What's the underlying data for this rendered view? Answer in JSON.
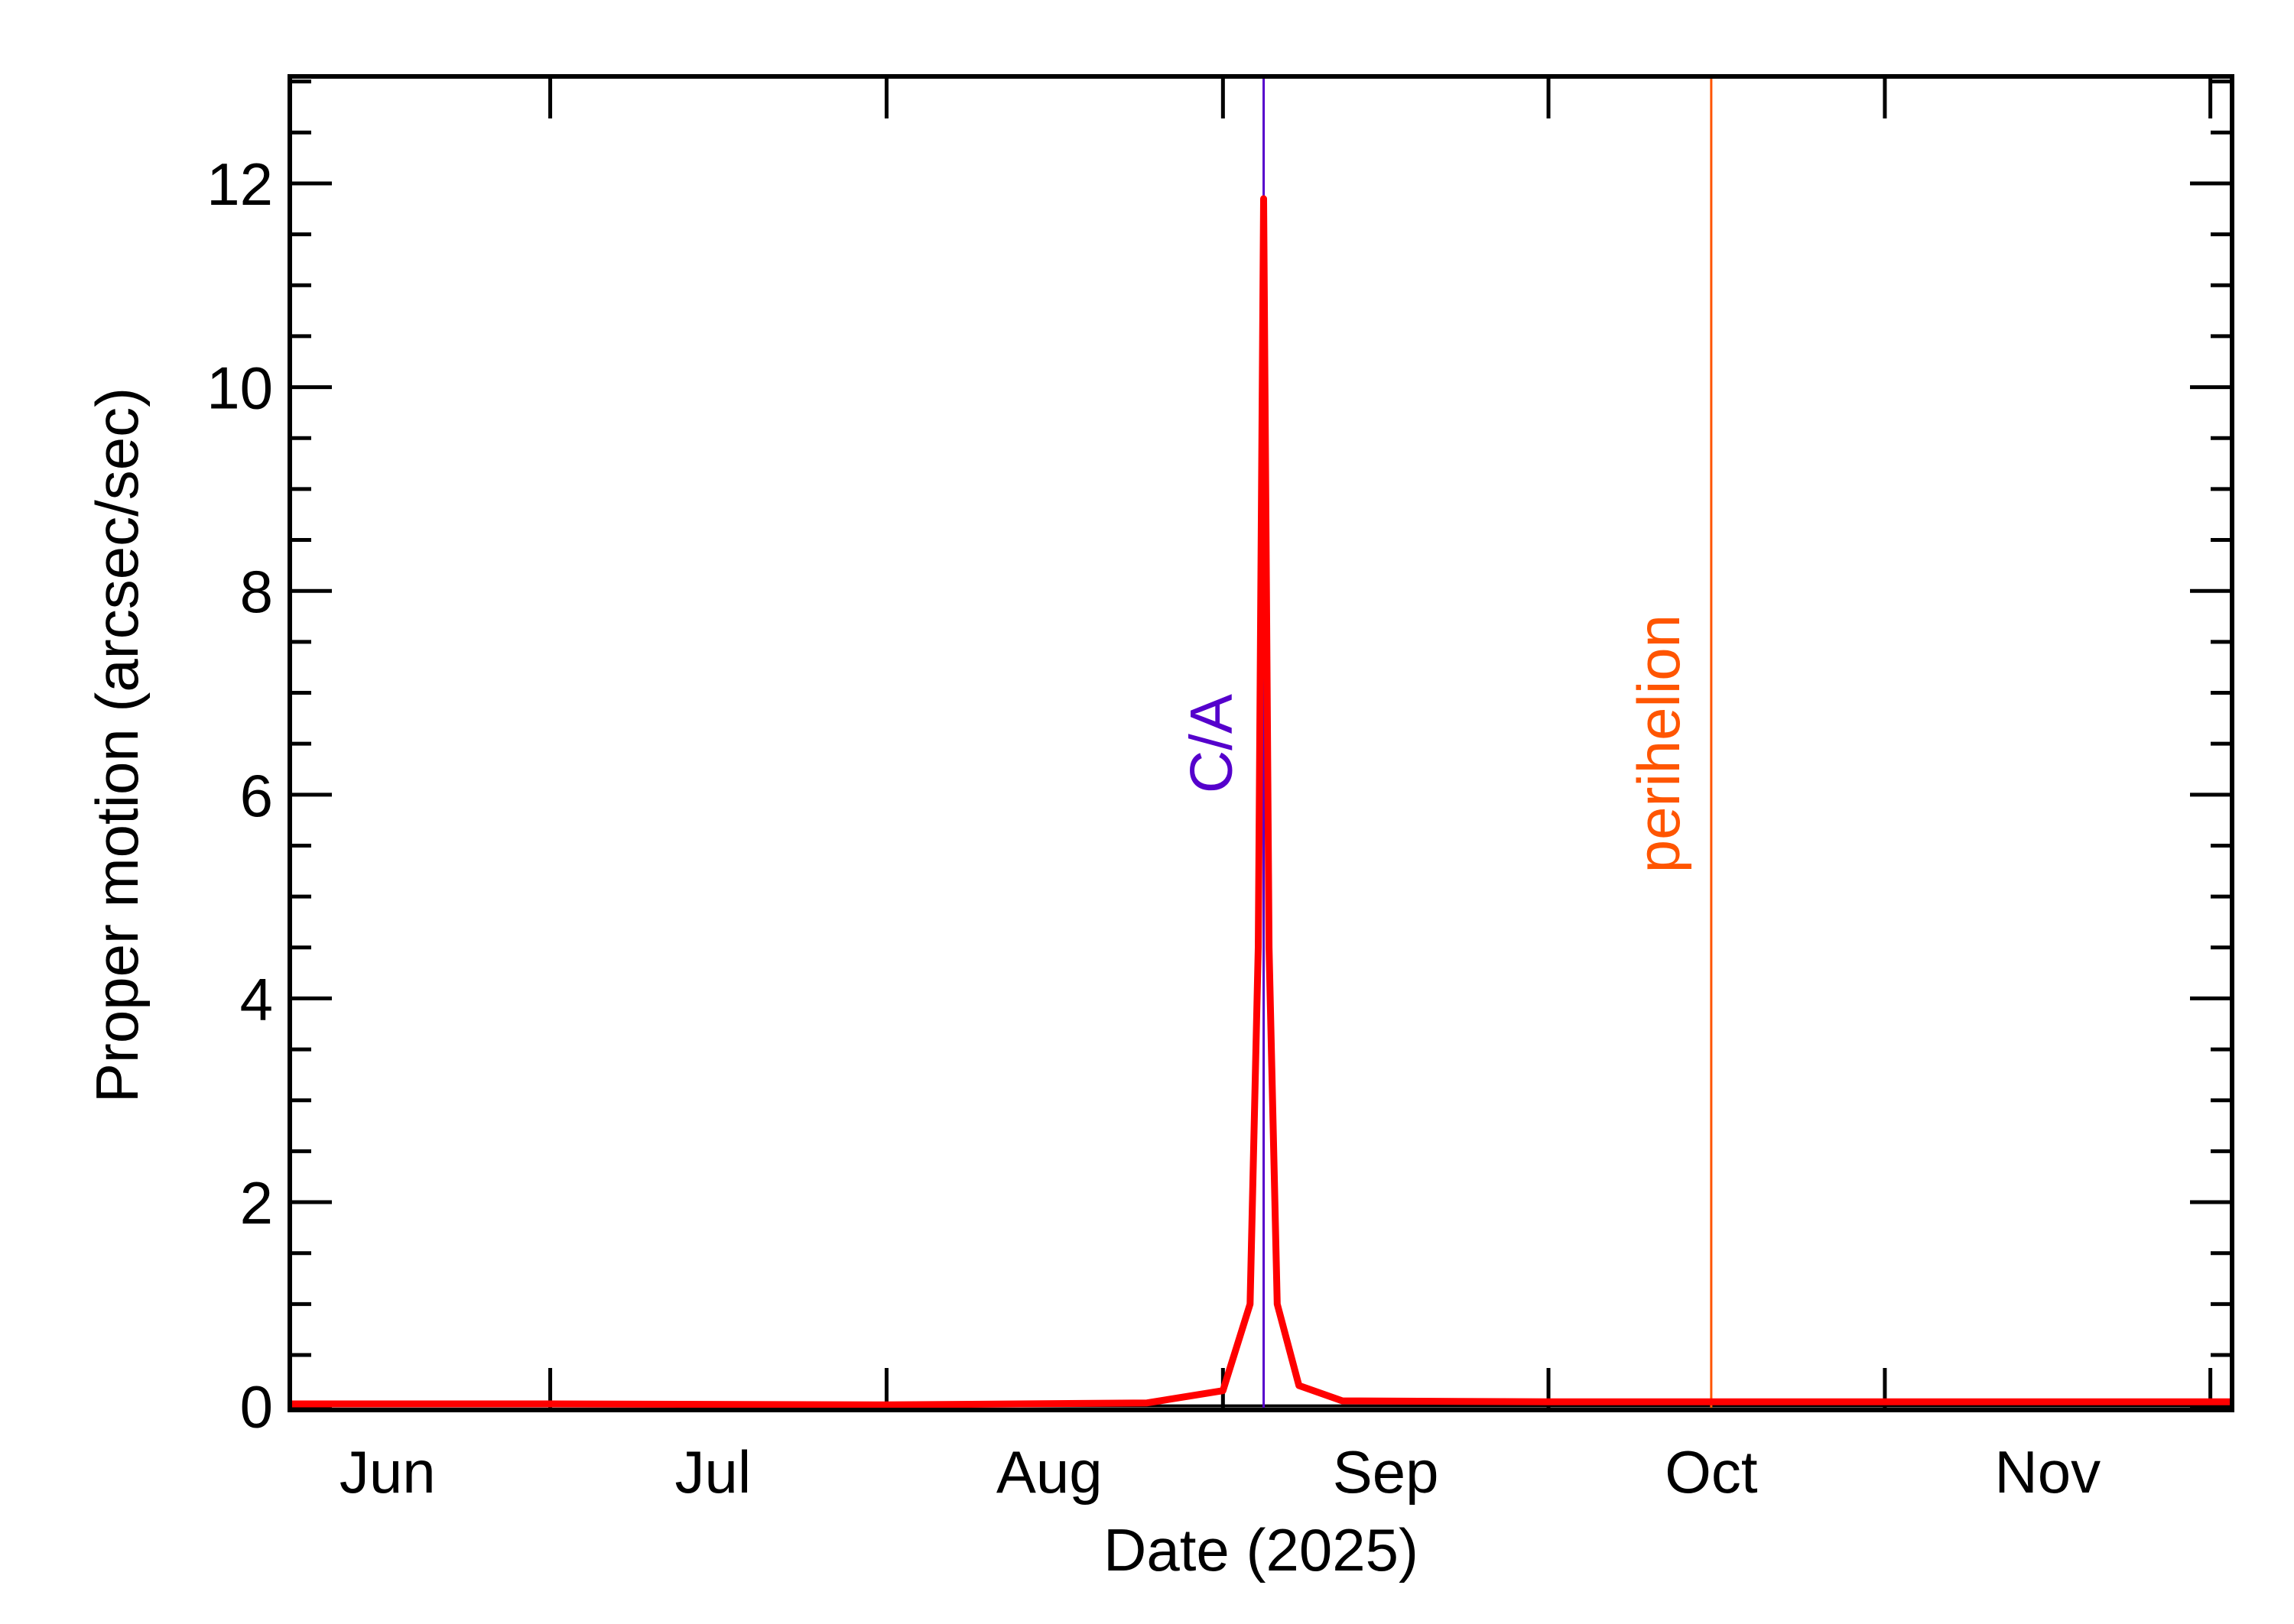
{
  "chart_data": {
    "type": "line",
    "xlabel": "Date (2025)",
    "ylabel": "Proper motion (arcsec/sec)",
    "x": [
      "2025-06-07",
      "2025-07-01",
      "2025-08-01",
      "2025-08-25",
      "2025-09-01",
      "2025-09-03T12:00",
      "2025-09-04T06:00",
      "2025-09-04T18:00",
      "2025-09-05T06:00",
      "2025-09-06",
      "2025-09-08",
      "2025-09-12",
      "2025-10-01",
      "2025-11-01",
      "2025-12-03"
    ],
    "series": [
      {
        "color": "#ff0000",
        "values": [
          0.02,
          0.02,
          0.01,
          0.03,
          0.15,
          1.0,
          4.5,
          11.85,
          4.5,
          1.0,
          0.2,
          0.05,
          0.04,
          0.04,
          0.04
        ]
      }
    ],
    "xlim": [
      "2025-06-07",
      "2025-12-03"
    ],
    "xticks": [
      "2025-07-01",
      "2025-08-01",
      "2025-09-01",
      "2025-10-01",
      "2025-11-01",
      "2025-12-01"
    ],
    "xtick_labels": [
      {
        "value": "2025-06-16",
        "label": "Jun"
      },
      {
        "value": "2025-07-16",
        "label": "Jul"
      },
      {
        "value": "2025-08-16",
        "label": "Aug"
      },
      {
        "value": "2025-09-16",
        "label": "Sep"
      },
      {
        "value": "2025-10-16",
        "label": "Oct"
      },
      {
        "value": "2025-11-16",
        "label": "Nov"
      }
    ],
    "ylim": [
      -0.04,
      13.05
    ],
    "yticks": [
      0,
      2,
      4,
      6,
      8,
      10,
      12
    ],
    "yminorticks": [
      0.5,
      1,
      1.5,
      2.5,
      3,
      3.5,
      4.5,
      5,
      5.5,
      6.5,
      7,
      7.5,
      8.5,
      9,
      9.5,
      10.5,
      11,
      11.5,
      12.5,
      13
    ],
    "vlines": [
      {
        "x": "2025-09-04T18:00",
        "label": "C/A",
        "color": "#5500cc"
      },
      {
        "x": "2025-10-16",
        "label": "perihelion",
        "color": "#ff5500"
      }
    ]
  }
}
